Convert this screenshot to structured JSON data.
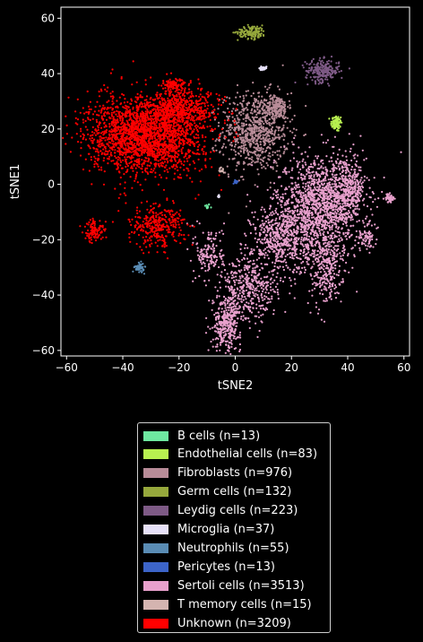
{
  "chart_data": {
    "type": "scatter",
    "xlabel": "tSNE2",
    "ylabel": "tSNE1",
    "xlim": [
      -62,
      62
    ],
    "ylim": [
      -62,
      64
    ],
    "xticks": [
      -60,
      -40,
      -20,
      0,
      20,
      40,
      60
    ],
    "yticks": [
      -60,
      -40,
      -20,
      0,
      20,
      40,
      60
    ],
    "tick_labels_x": [
      "−60",
      "−40",
      "−20",
      "0",
      "20",
      "40",
      "60"
    ],
    "tick_labels_y": [
      "−60",
      "−40",
      "−20",
      "0",
      "20",
      "40",
      "60"
    ],
    "grid": false,
    "legend_placement": "below",
    "series": [
      {
        "name": "B cells (n=13)",
        "color": "#6ee8a0",
        "clusters": [
          {
            "cx": -10,
            "cy": -8,
            "sx": 0.5,
            "sy": 0.5,
            "n": 13
          }
        ]
      },
      {
        "name": "Endothelial cells (n=83)",
        "color": "#b8f050",
        "clusters": [
          {
            "cx": 36,
            "cy": 22,
            "sx": 1.0,
            "sy": 1.5,
            "n": 83
          }
        ]
      },
      {
        "name": "Fibroblasts (n=976)",
        "color": "#b88c98",
        "clusters": [
          {
            "cx": 7,
            "cy": 19,
            "sx": 6,
            "sy": 7,
            "n": 800
          },
          {
            "cx": 15,
            "cy": 28,
            "sx": 2,
            "sy": 2,
            "n": 176
          }
        ]
      },
      {
        "name": "Germ cells (n=132)",
        "color": "#96a83c",
        "clusters": [
          {
            "cx": 6,
            "cy": 55,
            "sx": 2.5,
            "sy": 1.2,
            "n": 132
          }
        ]
      },
      {
        "name": "Leydig cells (n=223)",
        "color": "#7e5a86",
        "clusters": [
          {
            "cx": 31,
            "cy": 41,
            "sx": 3,
            "sy": 2,
            "n": 223
          }
        ]
      },
      {
        "name": "Microglia (n=37)",
        "color": "#e6e0f8",
        "clusters": [
          {
            "cx": 10,
            "cy": 42,
            "sx": 0.7,
            "sy": 0.4,
            "n": 30
          },
          {
            "cx": -6,
            "cy": -4,
            "sx": 0.3,
            "sy": 0.5,
            "n": 7
          }
        ]
      },
      {
        "name": "Neutrophils (n=55)",
        "color": "#5a8cb4",
        "clusters": [
          {
            "cx": -34,
            "cy": -30,
            "sx": 0.8,
            "sy": 0.8,
            "n": 55
          }
        ]
      },
      {
        "name": "Pericytes (n=13)",
        "color": "#3c64c8",
        "clusters": [
          {
            "cx": 0,
            "cy": 1,
            "sx": 0.3,
            "sy": 0.5,
            "n": 13
          }
        ]
      },
      {
        "name": "Sertoli cells (n=3513)",
        "color": "#e8a0cc",
        "clusters": [
          {
            "cx": 30,
            "cy": -8,
            "sx": 8,
            "sy": 9,
            "n": 1400
          },
          {
            "cx": 40,
            "cy": -2,
            "sx": 3,
            "sy": 5,
            "n": 300
          },
          {
            "cx": 16,
            "cy": -20,
            "sx": 5,
            "sy": 6,
            "n": 500
          },
          {
            "cx": 5,
            "cy": -38,
            "sx": 5,
            "sy": 6,
            "n": 400
          },
          {
            "cx": -3,
            "cy": -50,
            "sx": 2.5,
            "sy": 5,
            "n": 350
          },
          {
            "cx": 32,
            "cy": -30,
            "sx": 3,
            "sy": 7,
            "n": 300
          },
          {
            "cx": -9,
            "cy": -25,
            "sx": 2.5,
            "sy": 5,
            "n": 150
          },
          {
            "cx": 47,
            "cy": -20,
            "sx": 1.5,
            "sy": 2,
            "n": 60
          },
          {
            "cx": 55,
            "cy": -5,
            "sx": 0.8,
            "sy": 0.8,
            "n": 53
          }
        ]
      },
      {
        "name": "T memory cells (n=15)",
        "color": "#d4b4b0",
        "clusters": [
          {
            "cx": -5,
            "cy": 5,
            "sx": 0.5,
            "sy": 0.5,
            "n": 15
          }
        ]
      },
      {
        "name": "Unknown (n=3209)",
        "color": "#ff0000",
        "clusters": [
          {
            "cx": -32,
            "cy": 18,
            "sx": 10,
            "sy": 7,
            "n": 2200
          },
          {
            "cx": -18,
            "cy": 27,
            "sx": 6,
            "sy": 4,
            "n": 500
          },
          {
            "cx": -28,
            "cy": -15,
            "sx": 5,
            "sy": 4,
            "n": 320
          },
          {
            "cx": -50,
            "cy": -17,
            "sx": 2,
            "sy": 2,
            "n": 100
          },
          {
            "cx": -22,
            "cy": 36,
            "sx": 2,
            "sy": 1,
            "n": 89
          }
        ]
      }
    ]
  }
}
